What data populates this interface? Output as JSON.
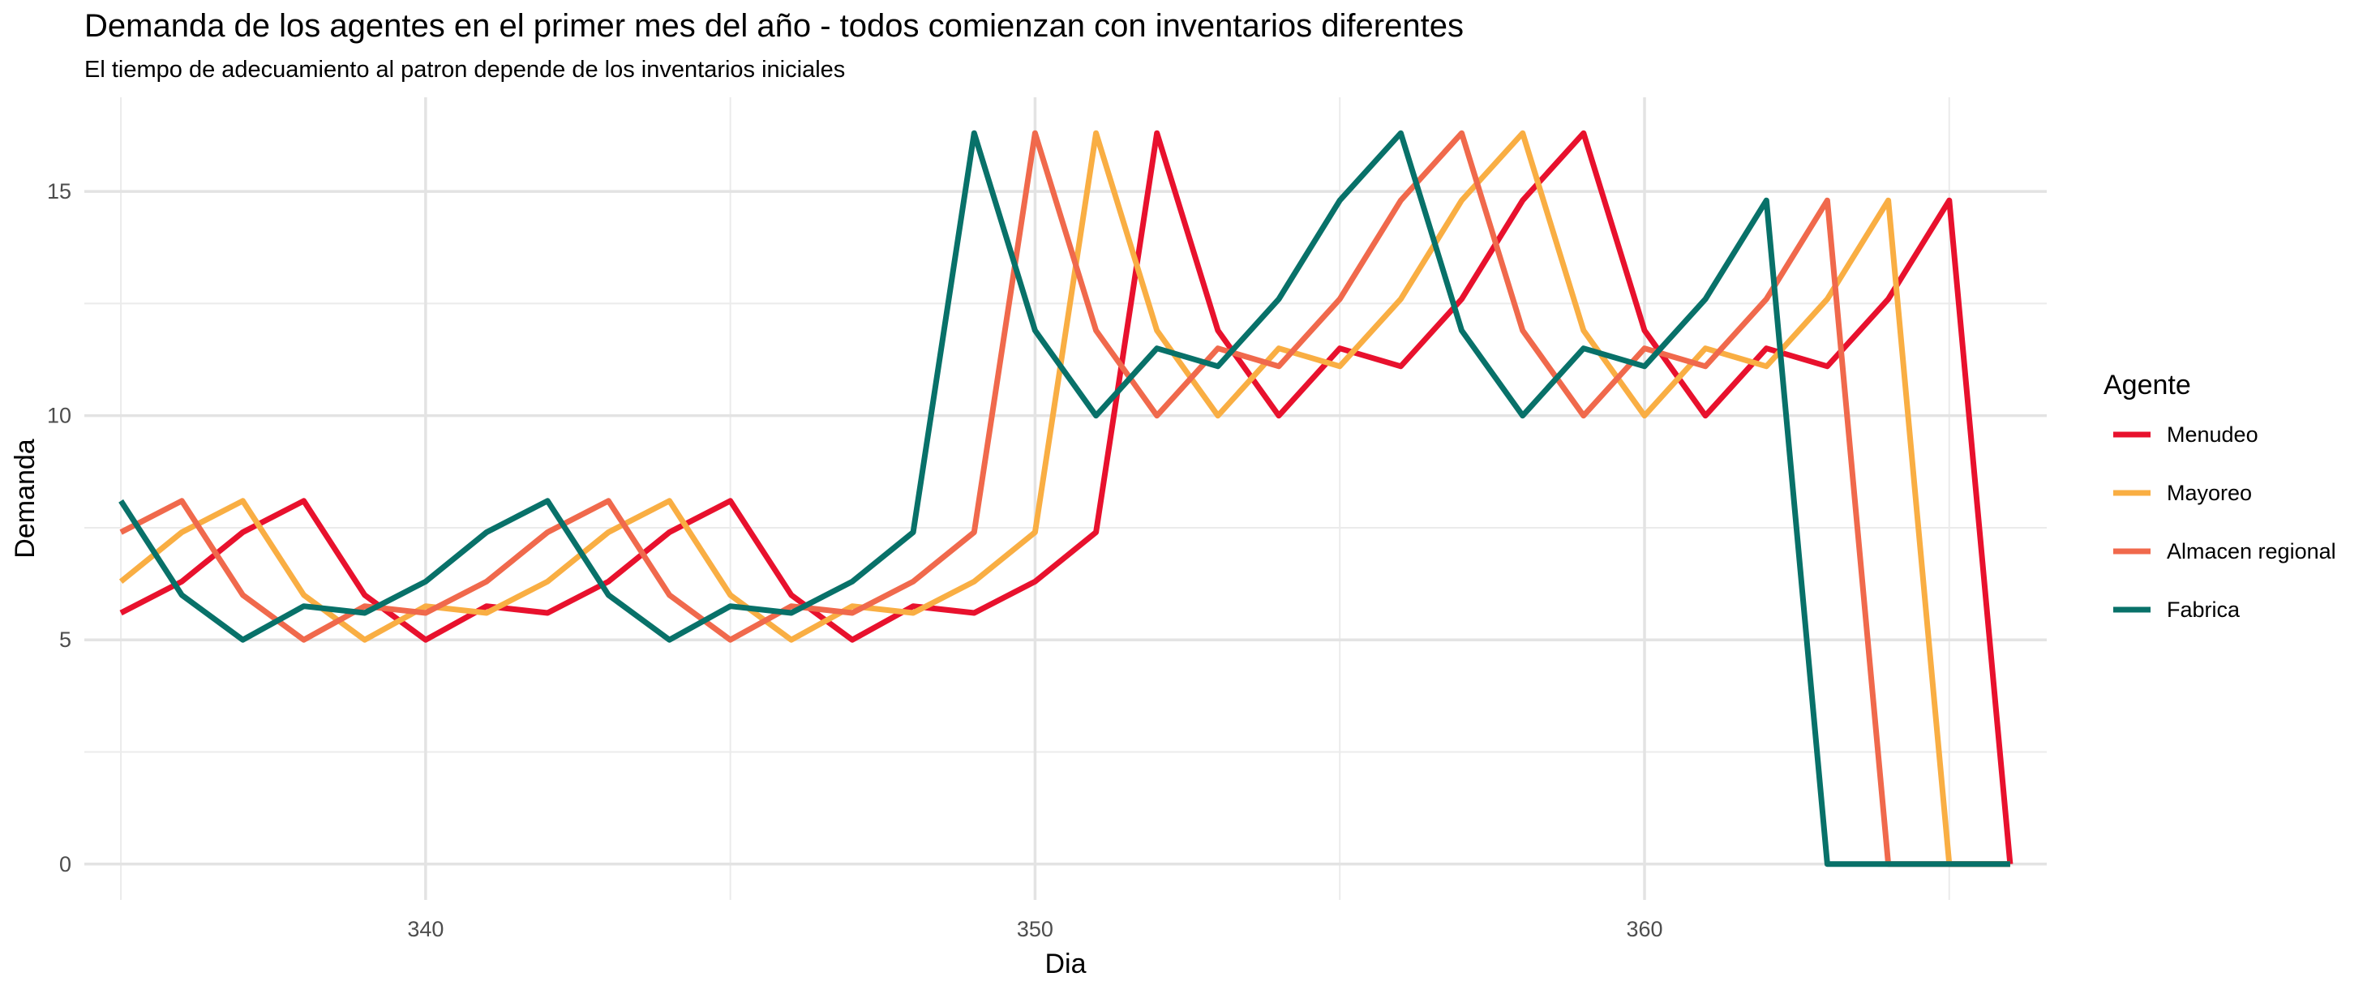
{
  "chart_data": {
    "type": "line",
    "title": "Demanda de los agentes en el primer mes del año - todos comienzan con inventarios diferentes",
    "subtitle": "El tiempo de adecuamiento al patron depende de los inventarios iniciales",
    "xlabel": "Dia",
    "ylabel": "Demanda",
    "xlim": [
      334.4,
      366.6
    ],
    "ylim": [
      -0.8,
      17.1
    ],
    "x_ticks": [
      340,
      350,
      360
    ],
    "y_ticks": [
      0,
      5,
      10,
      15
    ],
    "grid": true,
    "legend": {
      "title": "Agente",
      "position": "right"
    },
    "x": [
      335,
      336,
      337,
      338,
      339,
      340,
      341,
      342,
      343,
      344,
      345,
      346,
      347,
      348,
      349,
      350,
      351,
      352,
      353,
      354,
      355,
      356,
      357,
      358,
      359,
      360,
      361,
      362,
      363,
      364,
      365,
      366
    ],
    "series": [
      {
        "name": "Menudeo",
        "color": "#E8112D",
        "values": [
          5.6,
          6.3,
          7.4,
          8.1,
          6.0,
          5.0,
          5.75,
          5.6,
          6.3,
          7.4,
          8.1,
          6.0,
          5.0,
          5.75,
          5.6,
          6.3,
          7.4,
          16.3,
          11.9,
          10.0,
          11.5,
          11.1,
          12.6,
          14.8,
          16.3,
          11.9,
          10.0,
          11.5,
          11.1,
          12.6,
          14.8,
          0.0
        ]
      },
      {
        "name": "Mayoreo",
        "color": "#F9AE43",
        "values": [
          6.3,
          7.4,
          8.1,
          6.0,
          5.0,
          5.75,
          5.6,
          6.3,
          7.4,
          8.1,
          6.0,
          5.0,
          5.75,
          5.6,
          6.3,
          7.4,
          16.3,
          11.9,
          10.0,
          11.5,
          11.1,
          12.6,
          14.8,
          16.3,
          11.9,
          10.0,
          11.5,
          11.1,
          12.6,
          14.8,
          0.0,
          0.0
        ]
      },
      {
        "name": "Almacen regional",
        "color": "#F0694C",
        "values": [
          7.4,
          8.1,
          6.0,
          5.0,
          5.75,
          5.6,
          6.3,
          7.4,
          8.1,
          6.0,
          5.0,
          5.75,
          5.6,
          6.3,
          7.4,
          16.3,
          11.9,
          10.0,
          11.5,
          11.1,
          12.6,
          14.8,
          16.3,
          11.9,
          10.0,
          11.5,
          11.1,
          12.6,
          14.8,
          0.0,
          0.0,
          0.0
        ]
      },
      {
        "name": "Fabrica",
        "color": "#087169",
        "values": [
          8.1,
          6.0,
          5.0,
          5.75,
          5.6,
          6.3,
          7.4,
          8.1,
          6.0,
          5.0,
          5.75,
          5.6,
          6.3,
          7.4,
          16.3,
          11.9,
          10.0,
          11.5,
          11.1,
          12.6,
          14.8,
          16.3,
          11.9,
          10.0,
          11.5,
          11.1,
          12.6,
          14.8,
          0.0,
          0.0,
          0.0,
          0.0
        ]
      }
    ]
  }
}
